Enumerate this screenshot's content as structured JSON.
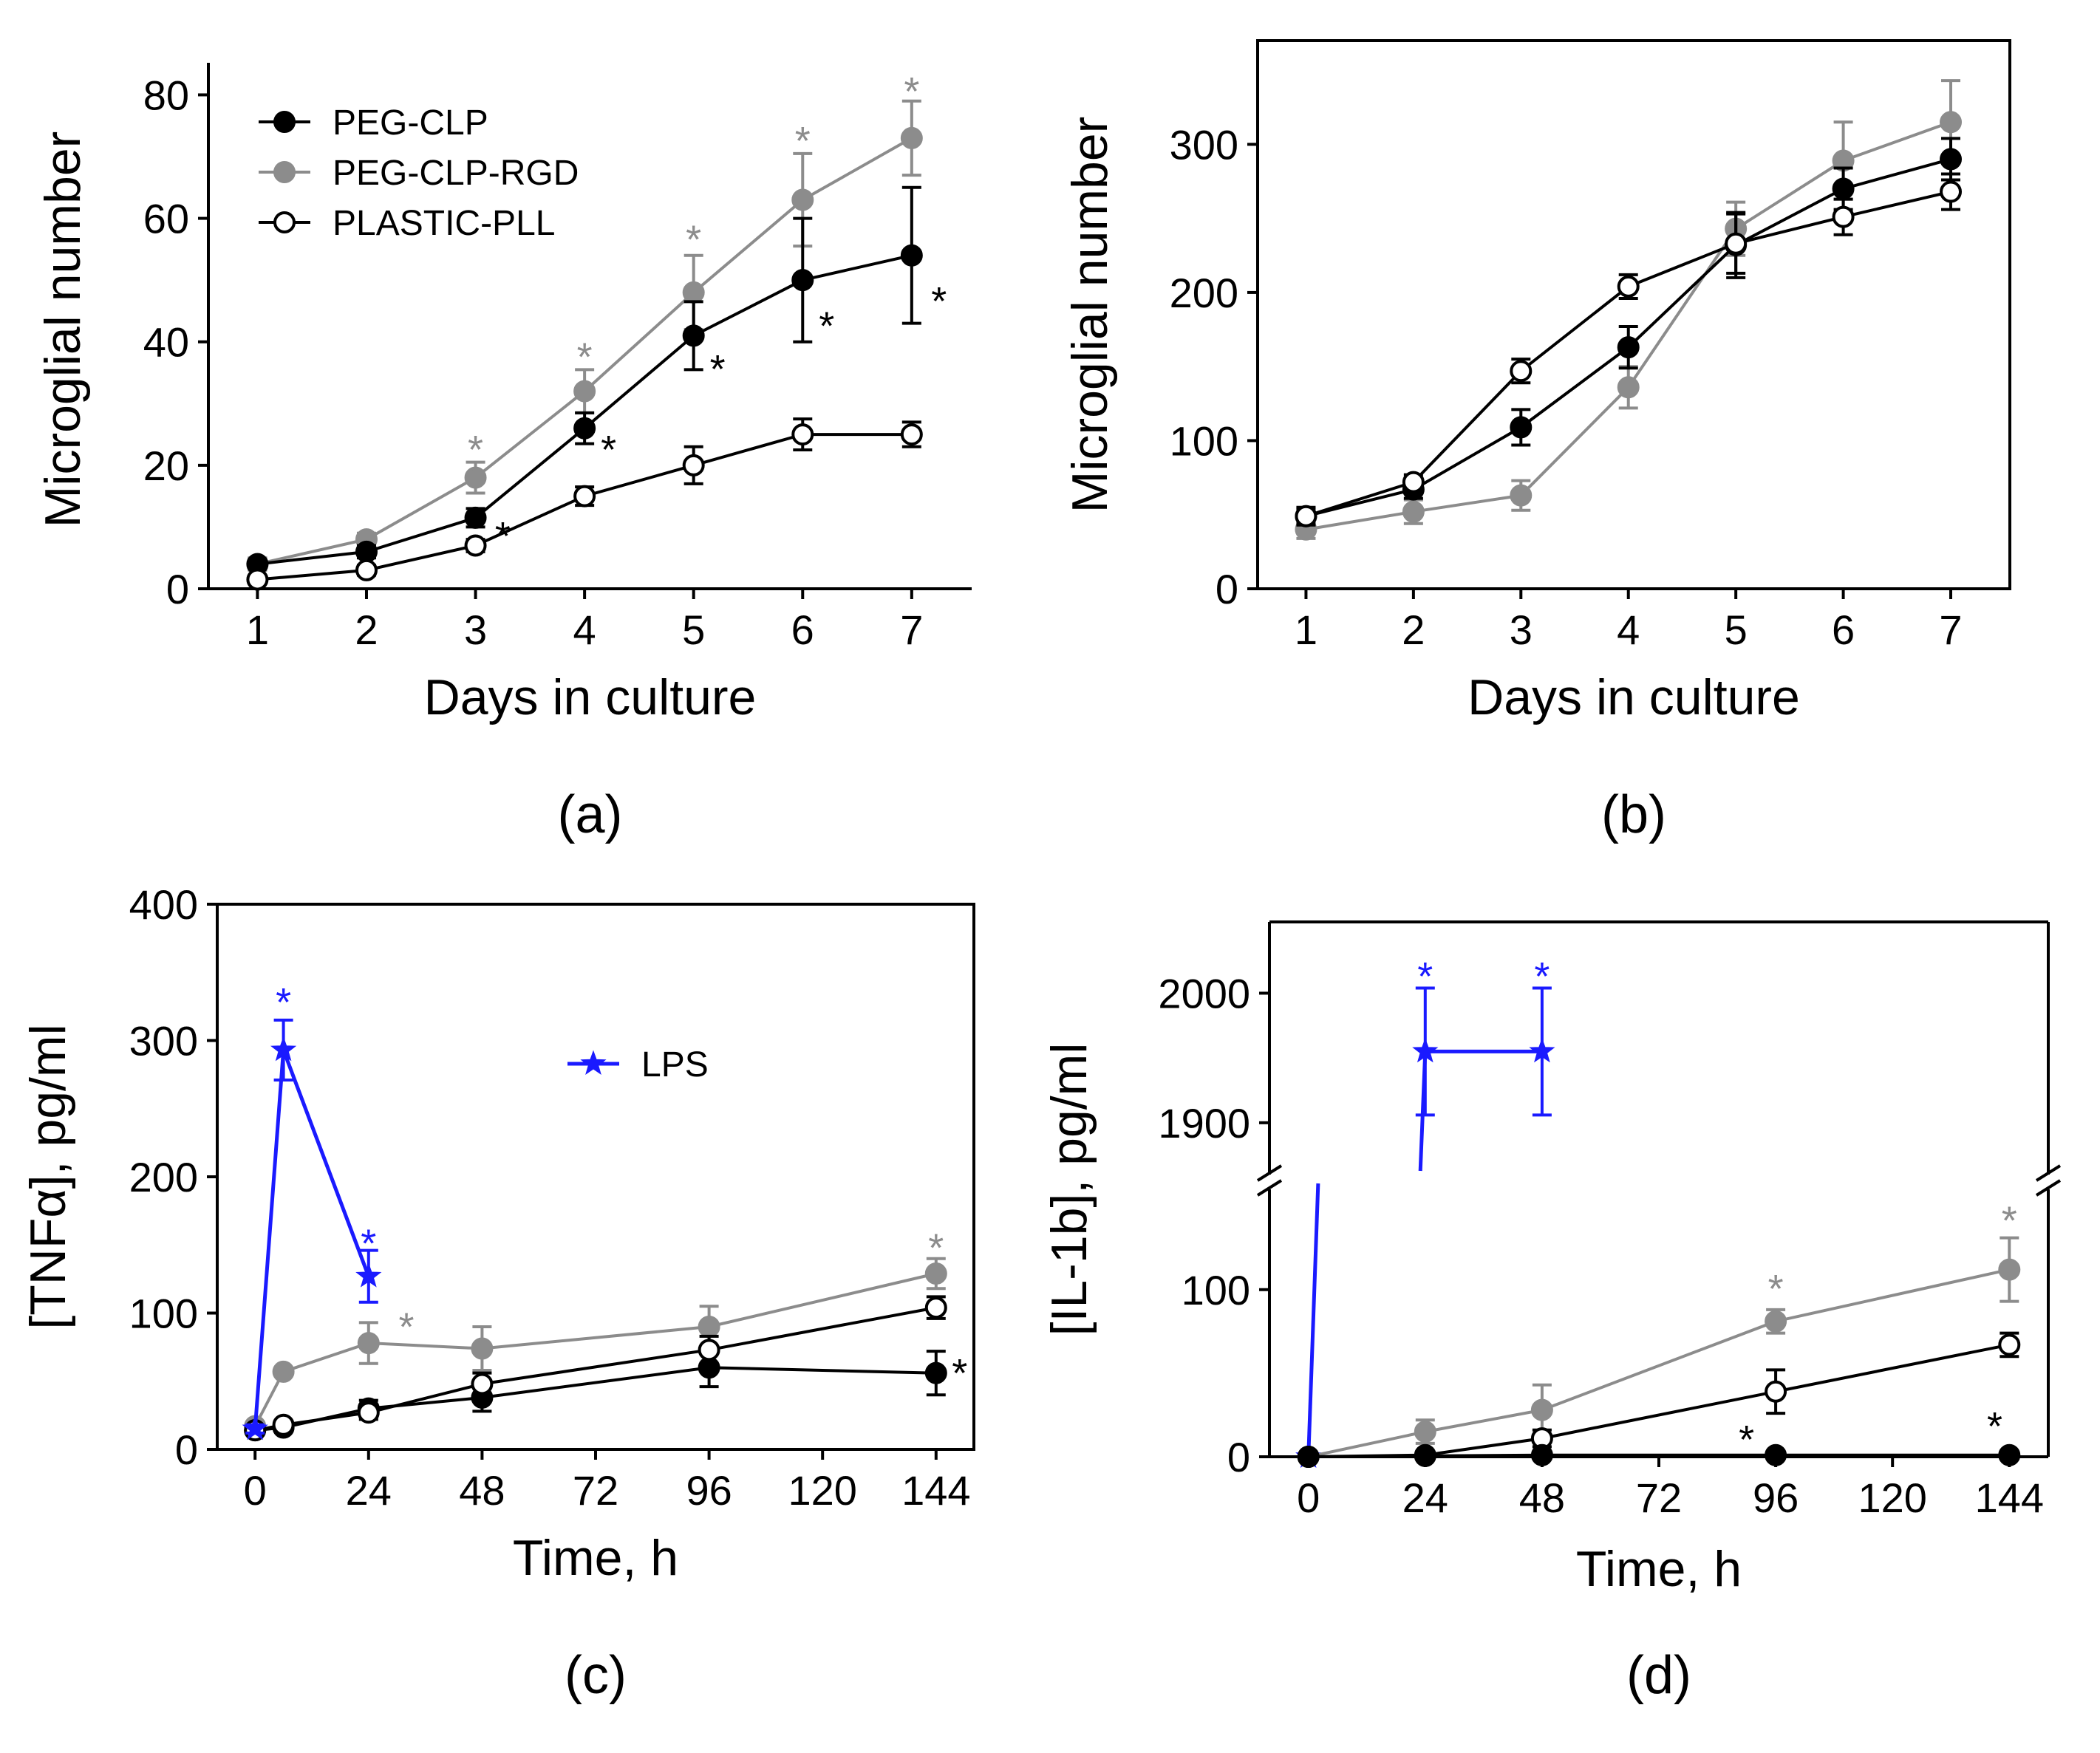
{
  "colors": {
    "peg_clp": "#000000",
    "peg_clp_rgd": "#8c8c8c",
    "plastic_pll": "#000000",
    "lps": "#1a1aff",
    "axis": "#000000"
  },
  "chart_data": [
    {
      "id": "a",
      "type": "line",
      "panel_label": "(a)",
      "xlabel": "Days in culture",
      "ylabel": "Microglial number",
      "x_ticks": [
        "1",
        "2",
        "3",
        "4",
        "5",
        "6",
        "7"
      ],
      "y_ticks": [
        "0",
        "20",
        "40",
        "60",
        "80"
      ],
      "xlim": [
        0.55,
        7.55
      ],
      "ylim": [
        0,
        84
      ],
      "box": false,
      "legend": {
        "placement": "top-left",
        "entries": [
          {
            "series": "PEG-CLP",
            "label": "PEG-CLP"
          },
          {
            "series": "PEG-CLP-RGD",
            "label": "PEG-CLP-RGD"
          },
          {
            "series": "PLASTIC-PLL",
            "label": "PLASTIC-PLL"
          }
        ]
      },
      "series": [
        {
          "name": "PEG-CLP-RGD",
          "style": "gray",
          "x": [
            1,
            2,
            3,
            4,
            5,
            6,
            7
          ],
          "y": [
            4,
            8,
            18,
            32,
            48,
            63,
            73
          ],
          "err": [
            1,
            1,
            2.5,
            3.5,
            6,
            7.5,
            6
          ],
          "stars": [
            {
              "x": 3,
              "y": 23,
              "dx": 0
            },
            {
              "x": 4,
              "y": 38,
              "dx": 0
            },
            {
              "x": 5,
              "y": 57,
              "dx": 0
            },
            {
              "x": 6,
              "y": 73,
              "dx": 0
            },
            {
              "x": 7,
              "y": 81,
              "dx": 0
            }
          ]
        },
        {
          "name": "PEG-CLP",
          "style": "black",
          "x": [
            1,
            2,
            3,
            4,
            5,
            6,
            7
          ],
          "y": [
            4,
            6,
            11.5,
            26,
            41,
            50,
            54
          ],
          "err": [
            0.8,
            1,
            1.5,
            2.5,
            5.5,
            10,
            11
          ],
          "stars": [
            {
              "x": 3,
              "y": 9,
              "dx": 0.25
            },
            {
              "x": 4,
              "y": 23,
              "dx": 0.22
            },
            {
              "x": 5,
              "y": 36,
              "dx": 0.22
            },
            {
              "x": 6,
              "y": 43,
              "dx": 0.22
            },
            {
              "x": 7,
              "y": 47,
              "dx": 0.25
            }
          ]
        },
        {
          "name": "PLASTIC-PLL",
          "style": "open",
          "x": [
            1,
            2,
            3,
            4,
            5,
            6,
            7
          ],
          "y": [
            1.5,
            3,
            7,
            15,
            20,
            25,
            25
          ],
          "err": [
            0.5,
            0.8,
            1,
            1.5,
            3,
            2.5,
            2
          ],
          "stars": []
        }
      ]
    },
    {
      "id": "b",
      "type": "line",
      "panel_label": "(b)",
      "xlabel": "Days in culture",
      "ylabel": "Microglial number",
      "x_ticks": [
        "1",
        "2",
        "3",
        "4",
        "5",
        "6",
        "7"
      ],
      "y_ticks": [
        "0",
        "100",
        "200",
        "300"
      ],
      "xlim": [
        0.55,
        7.55
      ],
      "ylim": [
        0,
        370
      ],
      "box": true,
      "series": [
        {
          "name": "PEG-CLP-RGD",
          "style": "gray",
          "x": [
            1,
            2,
            3,
            4,
            5,
            6,
            7
          ],
          "y": [
            40,
            52,
            63,
            136,
            243,
            289,
            315
          ],
          "err": [
            6,
            8,
            10,
            14,
            18,
            26,
            28
          ],
          "stars": []
        },
        {
          "name": "PEG-CLP",
          "style": "black",
          "x": [
            1,
            2,
            3,
            4,
            5,
            6,
            7
          ],
          "y": [
            49,
            67,
            109,
            163,
            232,
            270,
            290
          ],
          "err": [
            6,
            6,
            12,
            14,
            22,
            14,
            14
          ],
          "stars": []
        },
        {
          "name": "PLASTIC-PLL",
          "style": "open",
          "x": [
            1,
            2,
            3,
            4,
            5,
            6,
            7
          ],
          "y": [
            49,
            72,
            147,
            204,
            233,
            251,
            268
          ],
          "err": [
            5,
            5,
            8,
            8,
            20,
            12,
            12
          ],
          "stars": []
        }
      ]
    },
    {
      "id": "c",
      "type": "line",
      "panel_label": "(c)",
      "xlabel": "Time, h",
      "ylabel": "[TNFα], pg/ml",
      "x_ticks": [
        "0",
        "24",
        "48",
        "72",
        "96",
        "120",
        "144"
      ],
      "y_ticks": [
        "0",
        "100",
        "200",
        "300",
        "400"
      ],
      "xlim": [
        -8,
        152
      ],
      "ylim": [
        0,
        400
      ],
      "box": true,
      "legend": {
        "placement": "upper-center",
        "entries": [
          {
            "series": "LPS",
            "label": "LPS"
          }
        ]
      },
      "series": [
        {
          "name": "PEG-CLP-RGD",
          "style": "gray",
          "x": [
            0,
            6,
            24,
            48,
            96,
            144
          ],
          "y": [
            17,
            57,
            78,
            74,
            90,
            129
          ],
          "err": [
            2,
            3,
            15,
            16,
            15,
            11
          ],
          "stars": [
            {
              "x": 24,
              "y": 92,
              "dx": 8
            },
            {
              "x": 144,
              "y": 150,
              "dx": 0
            }
          ]
        },
        {
          "name": "PEG-CLP",
          "style": "black",
          "x": [
            0,
            6,
            24,
            48,
            96,
            144
          ],
          "y": [
            14,
            16,
            30,
            38,
            60,
            56
          ],
          "err": [
            2,
            3,
            6,
            10,
            14,
            16
          ],
          "stars": [
            {
              "x": 144,
              "y": 58,
              "dx": 5
            }
          ]
        },
        {
          "name": "PLASTIC-PLL",
          "style": "open",
          "x": [
            0,
            6,
            24,
            48,
            96,
            144
          ],
          "y": [
            14,
            18,
            27,
            48,
            73,
            104
          ],
          "err": [
            2,
            3,
            5,
            8,
            10,
            8
          ],
          "stars": []
        },
        {
          "name": "LPS",
          "style": "lps",
          "x": [
            0,
            6,
            24
          ],
          "y": [
            15,
            293,
            127
          ],
          "err": [
            3,
            22,
            19
          ],
          "stars": [
            {
              "x": 6,
              "y": 330,
              "dx": 0
            },
            {
              "x": 24,
              "y": 153,
              "dx": 0
            }
          ]
        }
      ]
    },
    {
      "id": "d",
      "type": "line",
      "panel_label": "(d)",
      "xlabel": "Time, h",
      "ylabel": "[IL-1b], pg/ml",
      "x_ticks": [
        "0",
        "24",
        "48",
        "72",
        "96",
        "120",
        "144"
      ],
      "y_ticks_lower": [
        "0",
        "100"
      ],
      "y_ticks_upper": [
        "1900",
        "2000"
      ],
      "xlim": [
        -8,
        152
      ],
      "ylim_lower": [
        0,
        160
      ],
      "ylim_upper": [
        1860,
        2055
      ],
      "box": true,
      "broken_y_axis": true,
      "series": [
        {
          "name": "PEG-CLP-RGD",
          "style": "gray",
          "x": [
            0,
            24,
            48,
            96,
            144
          ],
          "y": [
            0,
            15,
            28,
            81,
            112
          ],
          "err": [
            1,
            7,
            15,
            7,
            19
          ],
          "stars": [
            {
              "x": 96,
              "y": 102,
              "dx": 0
            },
            {
              "x": 144,
              "y": 143,
              "dx": 0
            }
          ]
        },
        {
          "name": "PLASTIC-PLL",
          "style": "open",
          "x": [
            0,
            24,
            48,
            96,
            144
          ],
          "y": [
            0,
            1,
            11,
            39,
            67
          ],
          "err": [
            1,
            1,
            5,
            13,
            7
          ],
          "stars": []
        },
        {
          "name": "PEG-CLP",
          "style": "black",
          "x": [
            0,
            24,
            48,
            96,
            144
          ],
          "y": [
            0,
            0.5,
            1,
            1,
            1
          ],
          "err": [
            0,
            0,
            0,
            0,
            0
          ],
          "stars": [
            {
              "x": 96,
              "y": 12,
              "dx": -6
            },
            {
              "x": 144,
              "y": 20,
              "dx": -3
            }
          ]
        },
        {
          "name": "LPS",
          "style": "lps",
          "x": [
            24,
            48
          ],
          "y": [
            1955,
            1955
          ],
          "err": [
            49,
            49
          ],
          "stars": [
            {
              "x": 24,
              "y": 2015,
              "dx": 0
            },
            {
              "x": 48,
              "y": 2015,
              "dx": 0
            }
          ]
        }
      ]
    }
  ]
}
